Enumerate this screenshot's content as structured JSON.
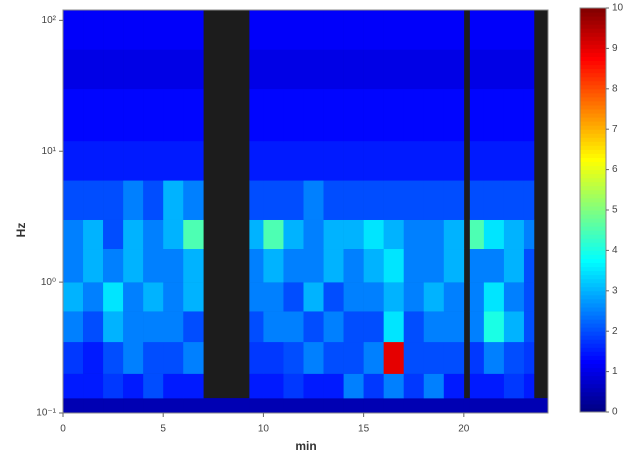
{
  "chart_data": {
    "type": "heatmap",
    "x_label": "min",
    "y_label": "Hz",
    "x_edges": [
      0,
      1,
      2,
      3,
      4,
      5,
      6,
      7,
      9.3,
      10,
      11,
      12,
      13,
      14,
      15,
      16,
      17,
      18,
      19,
      20,
      20.3,
      21,
      22,
      23,
      23.5,
      24.2
    ],
    "y_edges": [
      0.1,
      0.13,
      0.2,
      0.35,
      0.6,
      1,
      1.8,
      3,
      6,
      12,
      30,
      60,
      120
    ],
    "y_scale": "log",
    "xlim": [
      0,
      24.2
    ],
    "xticks": [
      0,
      5,
      10,
      15,
      20
    ],
    "ylim": [
      0.1,
      120
    ],
    "yticks": [
      {
        "value": 0.1,
        "label": "10⁻¹"
      },
      {
        "value": 1,
        "label": "10⁰"
      },
      {
        "value": 10,
        "label": "10¹"
      },
      {
        "value": 100,
        "label": "10²"
      }
    ],
    "colormap": "jet",
    "clim": [
      0,
      10
    ],
    "cticks": [
      0,
      1,
      2,
      3,
      4,
      5,
      6,
      7,
      8,
      9,
      10
    ],
    "values": [
      [
        0.5,
        0.5,
        0.5,
        0.5,
        0.5,
        0.5,
        0.5,
        0.5,
        0.5,
        0.5,
        0.5,
        0.5,
        0.5,
        0.5,
        0.5,
        0.5,
        0.5,
        0.5,
        0.5,
        0.5,
        0.5,
        0.5,
        0.5,
        0.5,
        0.5
      ],
      [
        1.5,
        1.5,
        1.8,
        1.5,
        2,
        1.5,
        1.5,
        null,
        1.5,
        1.5,
        1.8,
        1.5,
        1.5,
        2.5,
        1.8,
        2.5,
        1.8,
        2.5,
        1.5,
        null,
        1.5,
        1.5,
        1.8,
        1.5,
        null
      ],
      [
        1.8,
        1.5,
        2,
        2.5,
        2,
        2,
        2.5,
        null,
        1.8,
        1.8,
        2,
        2.5,
        2,
        2,
        2.5,
        9,
        2,
        2,
        2,
        null,
        1.8,
        2.5,
        2,
        1.8,
        null
      ],
      [
        2.5,
        2,
        3,
        2.5,
        2.5,
        2.5,
        2,
        null,
        2,
        2.5,
        2.5,
        2,
        2.5,
        2,
        2,
        3.5,
        2,
        2.5,
        2.5,
        null,
        2.5,
        4,
        3,
        2,
        null
      ],
      [
        3,
        2.5,
        3.5,
        2.5,
        3,
        2.5,
        3,
        null,
        2.5,
        2.5,
        2,
        3,
        2,
        2.5,
        2.5,
        3,
        2.5,
        3,
        2.5,
        null,
        2.5,
        3.5,
        2.5,
        2,
        null
      ],
      [
        2.5,
        3,
        2.5,
        3,
        2.5,
        2.5,
        3,
        null,
        2.5,
        3,
        2.5,
        2.5,
        3,
        2.5,
        3,
        3.5,
        2.5,
        2.5,
        3,
        null,
        2.5,
        2.5,
        3,
        2,
        null
      ],
      [
        2.5,
        3,
        2,
        3,
        2.5,
        3,
        4.5,
        null,
        3,
        4.5,
        3,
        2.5,
        3,
        3,
        3.5,
        3,
        2.5,
        2.5,
        3,
        null,
        4.5,
        3.5,
        3,
        2.5,
        null
      ],
      [
        2,
        2,
        2,
        2.5,
        2,
        3,
        2.5,
        null,
        2,
        2,
        2,
        2.5,
        2,
        2,
        2,
        2,
        2,
        2,
        2,
        null,
        2,
        2,
        2,
        2,
        null
      ],
      [
        1.5,
        1.5,
        1.5,
        1.5,
        1.5,
        1.5,
        1.5,
        null,
        1.5,
        1.5,
        1.5,
        1.5,
        1.5,
        1.5,
        1.5,
        1.5,
        1.5,
        1.5,
        1.5,
        null,
        1.5,
        1.5,
        1.5,
        1.5,
        null
      ],
      [
        1.3,
        1.3,
        1.3,
        1.3,
        1.3,
        1.3,
        1.3,
        null,
        1.3,
        1.3,
        1.3,
        1.3,
        1.3,
        1.3,
        1.3,
        1.3,
        1.3,
        1.3,
        1.3,
        null,
        1.3,
        1.3,
        1.3,
        1.3,
        null
      ],
      [
        1,
        1,
        1,
        1,
        1,
        1,
        1,
        null,
        1,
        1,
        1,
        1,
        1,
        1,
        1,
        1,
        1,
        1,
        1,
        null,
        1,
        1,
        1,
        1,
        null
      ],
      [
        1.2,
        1.2,
        1.2,
        1.2,
        1.2,
        1.2,
        1.2,
        null,
        1.2,
        1.2,
        1.2,
        1.2,
        1.2,
        1.2,
        1.2,
        1.2,
        1.2,
        1.2,
        1.2,
        null,
        1.2,
        1.2,
        1.2,
        1.2,
        null
      ]
    ]
  }
}
